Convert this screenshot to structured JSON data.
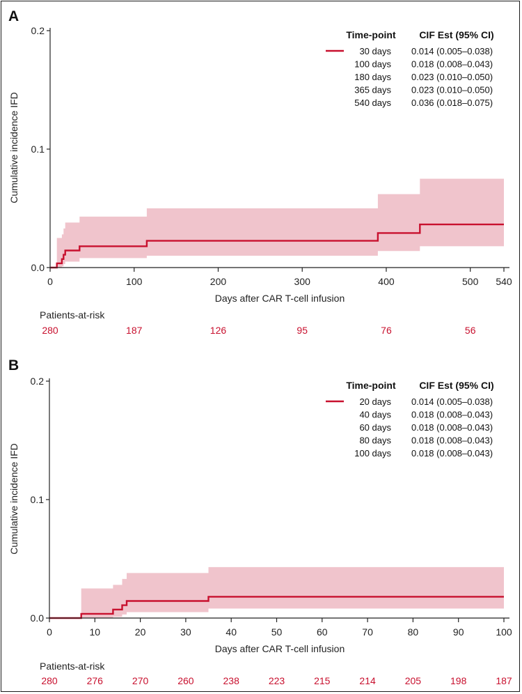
{
  "chart_data": [
    {
      "type": "line",
      "panel_label": "A",
      "xlabel": "Days after CAR T-cell infusion",
      "ylabel": "Cumulative incidence IFD",
      "xlim": [
        0,
        540
      ],
      "ylim": [
        0,
        0.2
      ],
      "xticks": [
        0,
        100,
        200,
        300,
        400,
        500,
        540
      ],
      "yticks": [
        "0.0",
        "0.1",
        "0.2"
      ],
      "series": [
        {
          "color": "#c8102e",
          "band_color": "#f0c4cc",
          "steps": [
            {
              "x": 0,
              "y": 0
            },
            {
              "x": 8,
              "y": 0.0036
            },
            {
              "x": 14,
              "y": 0.0072
            },
            {
              "x": 16,
              "y": 0.0108
            },
            {
              "x": 18,
              "y": 0.0144
            },
            {
              "x": 35,
              "y": 0.018
            },
            {
              "x": 115,
              "y": 0.0226
            },
            {
              "x": 390,
              "y": 0.0292
            },
            {
              "x": 440,
              "y": 0.0364
            },
            {
              "x": 540,
              "y": 0.0364
            }
          ],
          "ci": [
            {
              "x": 8,
              "lo": 0.0,
              "hi": 0.025
            },
            {
              "x": 14,
              "lo": 0.001,
              "hi": 0.028
            },
            {
              "x": 16,
              "lo": 0.003,
              "hi": 0.033
            },
            {
              "x": 18,
              "lo": 0.005,
              "hi": 0.038
            },
            {
              "x": 35,
              "lo": 0.008,
              "hi": 0.043
            },
            {
              "x": 115,
              "lo": 0.01,
              "hi": 0.05
            },
            {
              "x": 390,
              "lo": 0.014,
              "hi": 0.062
            },
            {
              "x": 440,
              "lo": 0.018,
              "hi": 0.075
            },
            {
              "x": 540,
              "lo": 0.018,
              "hi": 0.075
            }
          ]
        }
      ],
      "table": {
        "headers": [
          "Time-point",
          "CIF Est (95% CI)"
        ],
        "rows": [
          [
            "30 days",
            "0.014 (0.005–0.038)"
          ],
          [
            "100 days",
            "0.018 (0.008–0.043)"
          ],
          [
            "180 days",
            "0.023 (0.010–0.050)"
          ],
          [
            "365 days",
            "0.023 (0.010–0.050)"
          ],
          [
            "540 days",
            "0.036 (0.018–0.075)"
          ]
        ]
      },
      "at_risk": {
        "title": "Patients-at-risk",
        "x": [
          0,
          100,
          200,
          300,
          400,
          500
        ],
        "values": [
          "280",
          "187",
          "126",
          "95",
          "76",
          "56"
        ]
      }
    },
    {
      "type": "line",
      "panel_label": "B",
      "xlabel": "Days after CAR T-cell infusion",
      "ylabel": "Cumulative incidence IFD",
      "xlim": [
        0,
        100
      ],
      "ylim": [
        0,
        0.2
      ],
      "xticks": [
        0,
        10,
        20,
        30,
        40,
        50,
        60,
        70,
        80,
        90,
        100
      ],
      "yticks": [
        "0.0",
        "0.1",
        "0.2"
      ],
      "series": [
        {
          "color": "#c8102e",
          "band_color": "#f0c4cc",
          "steps": [
            {
              "x": 0,
              "y": 0
            },
            {
              "x": 7,
              "y": 0.0036
            },
            {
              "x": 14,
              "y": 0.0072
            },
            {
              "x": 16,
              "y": 0.0108
            },
            {
              "x": 17,
              "y": 0.0144
            },
            {
              "x": 35,
              "y": 0.018
            },
            {
              "x": 100,
              "y": 0.018
            }
          ],
          "ci": [
            {
              "x": 7,
              "lo": 0.0,
              "hi": 0.025
            },
            {
              "x": 14,
              "lo": 0.001,
              "hi": 0.028
            },
            {
              "x": 16,
              "lo": 0.003,
              "hi": 0.033
            },
            {
              "x": 17,
              "lo": 0.005,
              "hi": 0.038
            },
            {
              "x": 35,
              "lo": 0.008,
              "hi": 0.043
            },
            {
              "x": 100,
              "lo": 0.008,
              "hi": 0.043
            }
          ]
        }
      ],
      "table": {
        "headers": [
          "Time-point",
          "CIF Est (95% CI)"
        ],
        "rows": [
          [
            "20 days",
            "0.014 (0.005–0.038)"
          ],
          [
            "40 days",
            "0.018 (0.008–0.043)"
          ],
          [
            "60 days",
            "0.018 (0.008–0.043)"
          ],
          [
            "80 days",
            "0.018 (0.008–0.043)"
          ],
          [
            "100 days",
            "0.018 (0.008–0.043)"
          ]
        ]
      },
      "at_risk": {
        "title": "Patients-at-risk",
        "x": [
          0,
          10,
          20,
          30,
          40,
          50,
          60,
          70,
          80,
          90,
          100
        ],
        "values": [
          "280",
          "276",
          "270",
          "260",
          "238",
          "223",
          "215",
          "214",
          "205",
          "198",
          "187"
        ]
      }
    }
  ]
}
